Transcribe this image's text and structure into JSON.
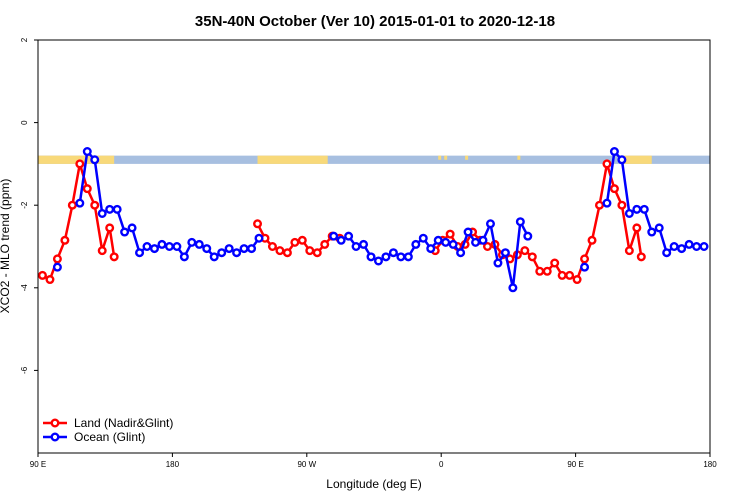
{
  "chart_data": {
    "type": "line",
    "title": "35N-40N October (Ver 10)   2015-01-01 to 2020-12-18",
    "xlabel": "Longitude (deg E)",
    "ylabel": "XCO2 - MLO trend (ppm)",
    "xlim": [
      90,
      540
    ],
    "ylim": [
      -8,
      2
    ],
    "x_ticks": [
      {
        "value": 90,
        "label": "90 E"
      },
      {
        "value": 180,
        "label": "180"
      },
      {
        "value": 270,
        "label": "90 W"
      },
      {
        "value": 360,
        "label": "0"
      },
      {
        "value": 450,
        "label": "90 E"
      },
      {
        "value": 540,
        "label": "180"
      }
    ],
    "y_ticks": [
      {
        "value": 2,
        "label": "2"
      },
      {
        "value": 0,
        "label": "0"
      },
      {
        "value": -2,
        "label": "-2"
      },
      {
        "value": -4,
        "label": "-4"
      },
      {
        "value": -6,
        "label": "-6"
      }
    ],
    "land_mask": {
      "y_range": [
        -1.0,
        -0.8
      ],
      "land_color": "#f8d97a",
      "ocean_color": "#a7bfe0",
      "land_spans": [
        [
          90,
          141
        ],
        [
          237,
          284
        ],
        [
          481,
          501
        ]
      ],
      "land_specks": [
        [
          358,
          360
        ],
        [
          362,
          364
        ],
        [
          376,
          378
        ],
        [
          411,
          413
        ]
      ]
    },
    "legend": {
      "position": "bottom-left"
    },
    "series": [
      {
        "name": "Land (Nadir&Glint)",
        "color": "#ff0000",
        "points": [
          [
            93,
            -3.7
          ],
          [
            98,
            -3.8
          ],
          [
            103,
            -3.3
          ],
          [
            108,
            -2.85
          ],
          [
            113,
            -2.0
          ],
          [
            118,
            -1.0
          ],
          [
            123,
            -1.6
          ],
          [
            128,
            -2.0
          ],
          [
            133,
            -3.1
          ],
          [
            138,
            -2.55
          ],
          [
            141,
            -3.25
          ],
          [
            237,
            -2.45
          ],
          [
            242,
            -2.8
          ],
          [
            247,
            -3.0
          ],
          [
            252,
            -3.1
          ],
          [
            257,
            -3.15
          ],
          [
            262,
            -2.9
          ],
          [
            267,
            -2.85
          ],
          [
            272,
            -3.1
          ],
          [
            277,
            -3.15
          ],
          [
            282,
            -2.95
          ],
          [
            287,
            -2.75
          ],
          [
            292,
            -2.8
          ],
          [
            356,
            -3.1
          ],
          [
            361,
            -2.85
          ],
          [
            366,
            -2.7
          ],
          [
            371,
            -3.0
          ],
          [
            376,
            -2.95
          ],
          [
            381,
            -2.65
          ],
          [
            386,
            -2.85
          ],
          [
            391,
            -3.0
          ],
          [
            396,
            -2.95
          ],
          [
            401,
            -3.2
          ],
          [
            406,
            -3.3
          ],
          [
            411,
            -3.2
          ],
          [
            416,
            -3.1
          ],
          [
            421,
            -3.25
          ],
          [
            426,
            -3.6
          ],
          [
            431,
            -3.6
          ],
          [
            436,
            -3.4
          ],
          [
            441,
            -3.7
          ],
          [
            446,
            -3.7
          ],
          [
            451,
            -3.8
          ],
          [
            456,
            -3.3
          ],
          [
            461,
            -2.85
          ],
          [
            466,
            -2.0
          ],
          [
            471,
            -1.0
          ],
          [
            476,
            -1.6
          ],
          [
            481,
            -2.0
          ],
          [
            486,
            -3.1
          ],
          [
            491,
            -2.55
          ],
          [
            494,
            -3.25
          ]
        ]
      },
      {
        "name": "Ocean (Glint)",
        "color": "#0000ff",
        "points": [
          [
            103,
            -3.5
          ],
          [
            118,
            -1.95
          ],
          [
            123,
            -0.7
          ],
          [
            128,
            -0.9
          ],
          [
            133,
            -2.2
          ],
          [
            138,
            -2.1
          ],
          [
            143,
            -2.1
          ],
          [
            148,
            -2.65
          ],
          [
            153,
            -2.55
          ],
          [
            158,
            -3.15
          ],
          [
            163,
            -3.0
          ],
          [
            168,
            -3.05
          ],
          [
            173,
            -2.95
          ],
          [
            178,
            -3.0
          ],
          [
            183,
            -3.0
          ],
          [
            188,
            -3.25
          ],
          [
            193,
            -2.9
          ],
          [
            198,
            -2.95
          ],
          [
            203,
            -3.05
          ],
          [
            208,
            -3.25
          ],
          [
            213,
            -3.15
          ],
          [
            218,
            -3.05
          ],
          [
            223,
            -3.15
          ],
          [
            228,
            -3.05
          ],
          [
            233,
            -3.05
          ],
          [
            238,
            -2.8
          ],
          [
            288,
            -2.75
          ],
          [
            293,
            -2.85
          ],
          [
            298,
            -2.75
          ],
          [
            303,
            -3.0
          ],
          [
            308,
            -2.95
          ],
          [
            313,
            -3.25
          ],
          [
            318,
            -3.35
          ],
          [
            323,
            -3.25
          ],
          [
            328,
            -3.15
          ],
          [
            333,
            -3.25
          ],
          [
            338,
            -3.25
          ],
          [
            343,
            -2.95
          ],
          [
            348,
            -2.8
          ],
          [
            353,
            -3.05
          ],
          [
            358,
            -2.85
          ],
          [
            363,
            -2.9
          ],
          [
            368,
            -2.95
          ],
          [
            373,
            -3.15
          ],
          [
            378,
            -2.65
          ],
          [
            383,
            -2.9
          ],
          [
            388,
            -2.85
          ],
          [
            393,
            -2.45
          ],
          [
            398,
            -3.4
          ],
          [
            403,
            -3.15
          ],
          [
            408,
            -4.0
          ],
          [
            413,
            -2.4
          ],
          [
            418,
            -2.75
          ],
          [
            456,
            -3.5
          ],
          [
            471,
            -1.95
          ],
          [
            476,
            -0.7
          ],
          [
            481,
            -0.9
          ],
          [
            486,
            -2.2
          ],
          [
            491,
            -2.1
          ],
          [
            496,
            -2.1
          ],
          [
            501,
            -2.65
          ],
          [
            506,
            -2.55
          ],
          [
            511,
            -3.15
          ],
          [
            516,
            -3.0
          ],
          [
            521,
            -3.05
          ],
          [
            526,
            -2.95
          ],
          [
            531,
            -3.0
          ],
          [
            536,
            -3.0
          ]
        ]
      }
    ]
  }
}
